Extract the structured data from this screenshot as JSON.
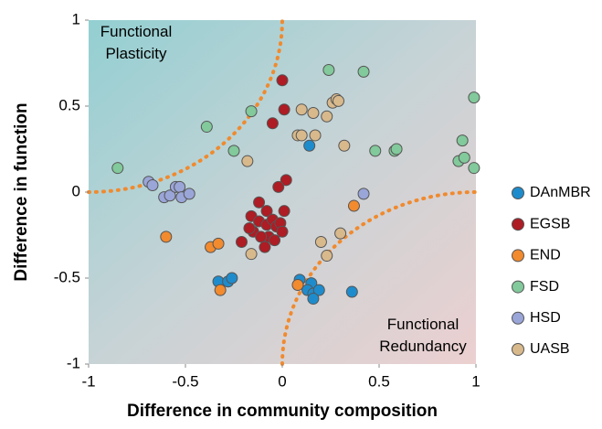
{
  "chart_data": {
    "type": "scatter",
    "x_label": "Difference in community composition",
    "y_label": "Difference in function",
    "annotations": [
      "Functional\nPlasticity",
      "Functional\nRedundancy"
    ],
    "xlim": [
      -1,
      1
    ],
    "ylim": [
      -1,
      1
    ],
    "xticks": [
      -1,
      -0.5,
      0,
      0.5,
      1
    ],
    "yticks": [
      -1,
      -0.5,
      0,
      0.5,
      1
    ],
    "legend": "right",
    "series": [
      {
        "name": "DAnMBR",
        "color": "#1e8ccc",
        "x": [
          0.14,
          -0.33,
          -0.28,
          -0.26,
          0.09,
          0.15,
          0.13,
          0.16,
          0.19,
          0.16,
          0.36
        ],
        "y": [
          0.27,
          -0.52,
          -0.52,
          -0.5,
          -0.51,
          -0.53,
          -0.57,
          -0.59,
          -0.57,
          -0.62,
          -0.58
        ]
      },
      {
        "name": "EGSB",
        "color": "#ae1c24",
        "x": [
          0,
          0.01,
          -0.05,
          0.02,
          -0.02,
          -0.12,
          -0.08,
          -0.16,
          -0.12,
          -0.15,
          -0.08,
          -0.05,
          -0.03,
          -0.07,
          -0.04,
          -0.11,
          -0.21,
          -0.09,
          -0.01,
          0,
          0.01,
          -0.17
        ],
        "y": [
          0.65,
          0.48,
          0.4,
          0.07,
          0.03,
          -0.06,
          -0.11,
          -0.14,
          -0.17,
          -0.23,
          -0.19,
          -0.16,
          -0.2,
          -0.26,
          -0.28,
          -0.26,
          -0.29,
          -0.32,
          -0.18,
          -0.23,
          -0.11,
          -0.21
        ]
      },
      {
        "name": "END",
        "color": "#f28a2e",
        "x": [
          -0.6,
          -0.37,
          -0.33,
          -0.32,
          0.08,
          0.37
        ],
        "y": [
          -0.26,
          -0.32,
          -0.3,
          -0.57,
          -0.54,
          -0.08
        ]
      },
      {
        "name": "FSD",
        "color": "#82c99b",
        "x": [
          -0.85,
          -0.39,
          -0.25,
          -0.16,
          0.24,
          0.42,
          0.48,
          0.58,
          0.59,
          0.91,
          0.93,
          0.94,
          0.99,
          0.99
        ],
        "y": [
          0.14,
          0.38,
          0.24,
          0.47,
          0.71,
          0.7,
          0.24,
          0.24,
          0.25,
          0.18,
          0.3,
          0.2,
          0.14,
          0.55
        ]
      },
      {
        "name": "HSD",
        "color": "#9aa5d8",
        "x": [
          -0.69,
          -0.67,
          -0.61,
          -0.58,
          -0.55,
          -0.53,
          -0.52,
          -0.48,
          0.42
        ],
        "y": [
          0.06,
          0.04,
          -0.03,
          -0.02,
          0.03,
          0.03,
          -0.03,
          -0.01,
          -0.01
        ]
      },
      {
        "name": "UASB",
        "color": "#d8b98c",
        "x": [
          -0.18,
          -0.16,
          0.08,
          0.1,
          0.1,
          0.16,
          0.17,
          0.23,
          0.26,
          0.28,
          0.29,
          0.32,
          0.2,
          0.3,
          0.23
        ],
        "y": [
          0.18,
          -0.36,
          0.33,
          0.33,
          0.48,
          0.46,
          0.33,
          0.44,
          0.52,
          0.54,
          0.53,
          0.27,
          -0.29,
          -0.24,
          -0.37
        ]
      }
    ]
  }
}
